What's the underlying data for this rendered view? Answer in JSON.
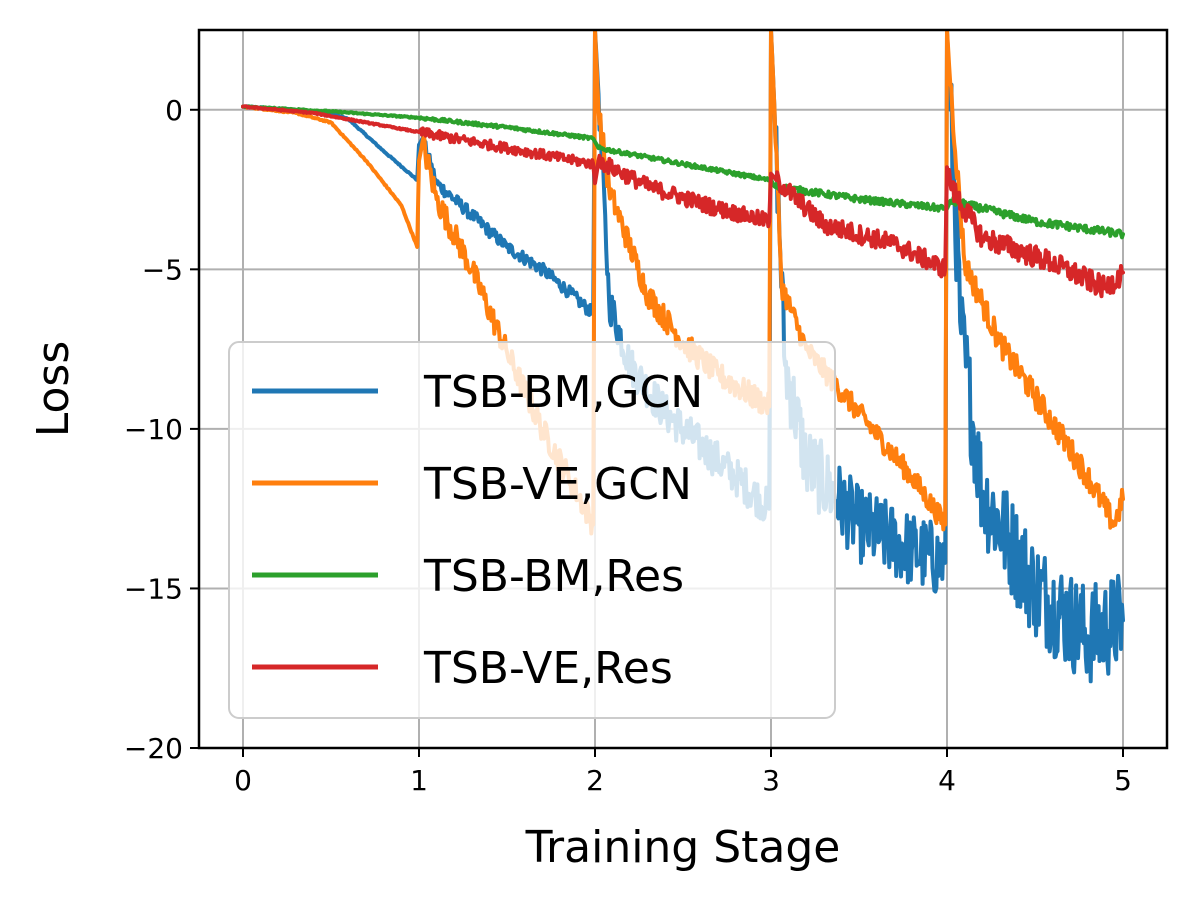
{
  "chart_data": {
    "type": "line",
    "title": "",
    "xlabel": "Training Stage",
    "ylabel": "Loss",
    "xlim": [
      -0.25,
      5.25
    ],
    "ylim": [
      -20,
      2.5
    ],
    "xticks": [
      0,
      1,
      2,
      3,
      4,
      5
    ],
    "xtick_labels": [
      "0",
      "1",
      "2",
      "3",
      "4",
      "5"
    ],
    "yticks": [
      0,
      -5,
      -10,
      -15,
      -20
    ],
    "ytick_labels": [
      "0",
      "−5",
      "−10",
      "−15",
      "−20"
    ],
    "grid": true,
    "legend_position": "lower-left",
    "series": [
      {
        "name": "TSB-BM,GCN",
        "color": "#1f77b4",
        "noise_after": [
          [
            1,
            0.2
          ],
          [
            2,
            0.6
          ],
          [
            3,
            1.2
          ],
          [
            4,
            1.6
          ]
        ],
        "points": [
          [
            0,
            0.1
          ],
          [
            0.3,
            0.0
          ],
          [
            0.5,
            -0.1
          ],
          [
            0.6,
            -0.3
          ],
          [
            0.8,
            -1.3
          ],
          [
            0.99,
            -2.2
          ],
          [
            1.0,
            -1.1
          ],
          [
            1.02,
            -0.9
          ],
          [
            1.1,
            -2.3
          ],
          [
            1.3,
            -3.3
          ],
          [
            1.5,
            -4.3
          ],
          [
            1.7,
            -5.0
          ],
          [
            1.85,
            -5.7
          ],
          [
            1.99,
            -6.4
          ],
          [
            2.0,
            2.5
          ],
          [
            2.02,
            0.5
          ],
          [
            2.08,
            -6.0
          ],
          [
            2.2,
            -8.0
          ],
          [
            2.4,
            -9.5
          ],
          [
            2.6,
            -10.5
          ],
          [
            2.8,
            -11.5
          ],
          [
            2.99,
            -12.5
          ],
          [
            3.0,
            2.5
          ],
          [
            3.02,
            0.0
          ],
          [
            3.08,
            -8.0
          ],
          [
            3.2,
            -11.0
          ],
          [
            3.5,
            -13.0
          ],
          [
            3.8,
            -13.8
          ],
          [
            3.99,
            -14.2
          ],
          [
            4.0,
            2.5
          ],
          [
            4.02,
            0.0
          ],
          [
            4.08,
            -7.0
          ],
          [
            4.2,
            -12.0
          ],
          [
            4.5,
            -15.0
          ],
          [
            4.8,
            -16.5
          ],
          [
            5.0,
            -16.0
          ]
        ]
      },
      {
        "name": "TSB-VE,GCN",
        "color": "#ff7f0e",
        "noise_after": [
          [
            1,
            0.4
          ],
          [
            2,
            0.4
          ],
          [
            3,
            0.35
          ],
          [
            4,
            0.4
          ]
        ],
        "points": [
          [
            0,
            0.1
          ],
          [
            0.3,
            -0.1
          ],
          [
            0.5,
            -0.4
          ],
          [
            0.7,
            -1.6
          ],
          [
            0.9,
            -3.0
          ],
          [
            0.99,
            -4.3
          ],
          [
            1.0,
            -1.6
          ],
          [
            1.02,
            -1.0
          ],
          [
            1.1,
            -2.8
          ],
          [
            1.3,
            -5.0
          ],
          [
            1.5,
            -7.6
          ],
          [
            1.7,
            -10.0
          ],
          [
            1.85,
            -11.5
          ],
          [
            1.99,
            -13.0
          ],
          [
            2.0,
            2.5
          ],
          [
            2.02,
            0.0
          ],
          [
            2.08,
            -2.5
          ],
          [
            2.3,
            -5.8
          ],
          [
            2.5,
            -7.3
          ],
          [
            2.7,
            -8.3
          ],
          [
            2.99,
            -9.3
          ],
          [
            3.0,
            2.5
          ],
          [
            3.02,
            0.0
          ],
          [
            3.06,
            -5.5
          ],
          [
            3.2,
            -7.5
          ],
          [
            3.5,
            -9.5
          ],
          [
            3.8,
            -11.5
          ],
          [
            3.99,
            -13.0
          ],
          [
            4.0,
            2.5
          ],
          [
            4.03,
            0.0
          ],
          [
            4.1,
            -4.8
          ],
          [
            4.3,
            -7.3
          ],
          [
            4.6,
            -9.8
          ],
          [
            4.8,
            -11.5
          ],
          [
            4.95,
            -13.0
          ],
          [
            5.0,
            -12.2
          ]
        ]
      },
      {
        "name": "TSB-BM,Res",
        "color": "#2ca02c",
        "noise_after": [
          [
            1,
            0.05
          ],
          [
            2,
            0.06
          ],
          [
            3,
            0.1
          ],
          [
            4,
            0.12
          ]
        ],
        "points": [
          [
            0,
            0.1
          ],
          [
            0.5,
            -0.05
          ],
          [
            1.0,
            -0.25
          ],
          [
            1.5,
            -0.55
          ],
          [
            1.99,
            -0.9
          ],
          [
            2.0,
            -1.0
          ],
          [
            2.02,
            -1.2
          ],
          [
            2.5,
            -1.7
          ],
          [
            2.99,
            -2.2
          ],
          [
            3.0,
            -2.2
          ],
          [
            3.02,
            -2.4
          ],
          [
            3.5,
            -2.8
          ],
          [
            3.99,
            -3.1
          ],
          [
            4.0,
            -3.1
          ],
          [
            4.02,
            -2.85
          ],
          [
            4.5,
            -3.5
          ],
          [
            5.0,
            -3.9
          ]
        ]
      },
      {
        "name": "TSB-VE,Res",
        "color": "#d62728",
        "noise_after": [
          [
            1,
            0.15
          ],
          [
            2,
            0.25
          ],
          [
            3,
            0.3
          ],
          [
            4,
            0.35
          ]
        ],
        "points": [
          [
            0,
            0.1
          ],
          [
            0.4,
            -0.1
          ],
          [
            0.7,
            -0.4
          ],
          [
            1.0,
            -0.7
          ],
          [
            1.5,
            -1.2
          ],
          [
            1.99,
            -1.7
          ],
          [
            2.0,
            -2.3
          ],
          [
            2.02,
            -1.6
          ],
          [
            2.3,
            -2.4
          ],
          [
            2.7,
            -3.1
          ],
          [
            2.99,
            -3.5
          ],
          [
            3.0,
            -2.0
          ],
          [
            3.03,
            -2.2
          ],
          [
            3.3,
            -3.6
          ],
          [
            3.7,
            -4.2
          ],
          [
            3.99,
            -5.0
          ],
          [
            4.0,
            -1.8
          ],
          [
            4.03,
            -2.5
          ],
          [
            4.2,
            -4.0
          ],
          [
            4.6,
            -4.8
          ],
          [
            4.9,
            -5.6
          ],
          [
            5.0,
            -5.1
          ]
        ]
      }
    ]
  }
}
